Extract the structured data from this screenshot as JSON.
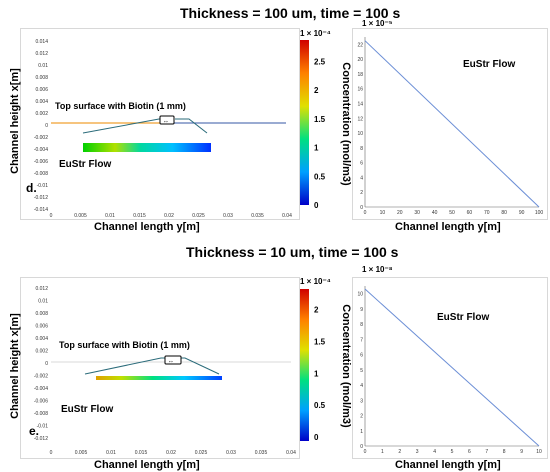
{
  "top": {
    "title": "Thickness = 100 um, time = 100 s",
    "left": {
      "xlabel": "Channel length y[m]",
      "ylabel": "Channel height x[m]",
      "xticks": [
        "0",
        "0.005",
        "0.01",
        "0.015",
        "0.02",
        "0.025",
        "0.03",
        "0.035",
        "0.04"
      ],
      "yticks": [
        "0.014",
        "0.012",
        "0.01",
        "0.008",
        "0.006",
        "0.004",
        "0.002",
        "0",
        "-0.002",
        "-0.004",
        "-0.006",
        "-0.008",
        "-0.01",
        "-0.012",
        "-0.014"
      ],
      "annotation": "Top surface with Biotin (1 mm)",
      "flow_label": "EuStr Flow",
      "panel_letter": "d.",
      "colorbar": {
        "title": "1 × 10⁻⁴",
        "label": "Concentration (mol/m3)",
        "ticks": [
          "2.5",
          "2",
          "1.5",
          "1",
          "0.5",
          "0"
        ]
      }
    },
    "right": {
      "exponent": "1 × 10⁻⁵",
      "xlabel": "Channel length y[m]",
      "flow_label": "EuStr Flow",
      "xticks": [
        "0",
        "10",
        "20",
        "30",
        "40",
        "50",
        "60",
        "70",
        "80",
        "90",
        "100"
      ],
      "yticks": [
        "22",
        "20",
        "18",
        "16",
        "14",
        "12",
        "10",
        "8",
        "6",
        "4",
        "2",
        "0"
      ]
    }
  },
  "bottom": {
    "title": "Thickness = 10 um, time = 100 s",
    "left": {
      "xlabel": "Channel length y[m]",
      "ylabel": "Channel height x[m]",
      "xticks": [
        "0",
        "0.005",
        "0.01",
        "0.015",
        "0.02",
        "0.025",
        "0.03",
        "0.035",
        "0.04"
      ],
      "yticks": [
        "0.012",
        "0.01",
        "0.008",
        "0.006",
        "0.004",
        "0.002",
        "0",
        "-0.002",
        "-0.004",
        "-0.006",
        "-0.008",
        "-0.01",
        "-0.012"
      ],
      "annotation": "Top surface with Biotin (1 mm)",
      "flow_label": "EuStr Flow",
      "panel_letter": "e.",
      "colorbar": {
        "title": "1 × 10⁻⁴",
        "label": "Concentration (mol/m3)",
        "ticks": [
          "2",
          "1.5",
          "1",
          "0.5",
          "0"
        ]
      }
    },
    "right": {
      "exponent": "1 × 10⁻⁸",
      "xlabel": "Channel length y[m]",
      "flow_label": "EuStr Flow",
      "xticks": [
        "0",
        "1",
        "2",
        "3",
        "4",
        "5",
        "6",
        "7",
        "8",
        "9",
        "10"
      ],
      "yticks": [
        "10",
        "9",
        "8",
        "7",
        "6",
        "5",
        "4",
        "3",
        "2",
        "1",
        "0"
      ]
    }
  },
  "colors": {
    "line": "#6c8fd6",
    "surface_line": "#f0a030",
    "cb_top": "#d00000",
    "cb_bottom": "#0000c8"
  },
  "chart_data": [
    {
      "type": "line",
      "title": "Thickness = 100 um, time = 100 s",
      "xlabel": "Channel length y[m]",
      "ylabel": "",
      "xlim": [
        0,
        100
      ],
      "ylim": [
        0,
        23
      ],
      "y_scale_factor": "1 × 10⁻⁵",
      "series": [
        {
          "x": [
            0,
            100
          ],
          "y": [
            22.5,
            0
          ]
        }
      ]
    },
    {
      "type": "line",
      "title": "Thickness = 10 um, time = 100 s",
      "xlabel": "Channel length y[m]",
      "ylabel": "",
      "xlim": [
        0,
        10
      ],
      "ylim": [
        0,
        10.5
      ],
      "y_scale_factor": "1 × 10⁻⁸",
      "series": [
        {
          "x": [
            0,
            10
          ],
          "y": [
            10.3,
            0
          ]
        }
      ]
    }
  ]
}
